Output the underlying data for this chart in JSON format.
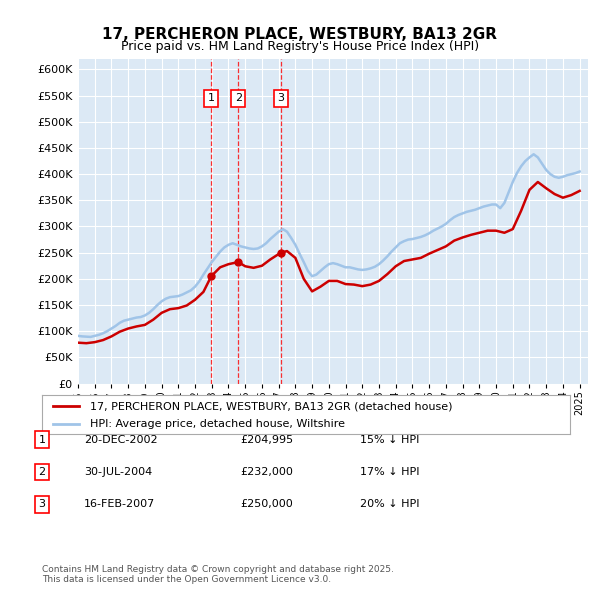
{
  "title": "17, PERCHERON PLACE, WESTBURY, BA13 2GR",
  "subtitle": "Price paid vs. HM Land Registry's House Price Index (HPI)",
  "ylim": [
    0,
    620000
  ],
  "yticks": [
    0,
    50000,
    100000,
    150000,
    200000,
    250000,
    300000,
    350000,
    400000,
    450000,
    500000,
    550000,
    600000
  ],
  "bg_color": "#dce9f5",
  "plot_bg": "#dce9f5",
  "hpi_color": "#a0c4e8",
  "price_color": "#cc0000",
  "legend_label_price": "17, PERCHERON PLACE, WESTBURY, BA13 2GR (detached house)",
  "legend_label_hpi": "HPI: Average price, detached house, Wiltshire",
  "transactions": [
    {
      "num": 1,
      "date": "20-DEC-2002",
      "price": 204995,
      "pct": "15%",
      "year": 2002.97
    },
    {
      "num": 2,
      "date": "30-JUL-2004",
      "price": 232000,
      "pct": "17%",
      "year": 2004.58
    },
    {
      "num": 3,
      "date": "16-FEB-2007",
      "price": 250000,
      "pct": "20%",
      "year": 2007.13
    }
  ],
  "footer": "Contains HM Land Registry data © Crown copyright and database right 2025.\nThis data is licensed under the Open Government Licence v3.0.",
  "hpi_data": {
    "years": [
      1995.0,
      1995.25,
      1995.5,
      1995.75,
      1996.0,
      1996.25,
      1996.5,
      1996.75,
      1997.0,
      1997.25,
      1997.5,
      1997.75,
      1998.0,
      1998.25,
      1998.5,
      1998.75,
      1999.0,
      1999.25,
      1999.5,
      1999.75,
      2000.0,
      2000.25,
      2000.5,
      2000.75,
      2001.0,
      2001.25,
      2001.5,
      2001.75,
      2002.0,
      2002.25,
      2002.5,
      2002.75,
      2003.0,
      2003.25,
      2003.5,
      2003.75,
      2004.0,
      2004.25,
      2004.5,
      2004.75,
      2005.0,
      2005.25,
      2005.5,
      2005.75,
      2006.0,
      2006.25,
      2006.5,
      2006.75,
      2007.0,
      2007.25,
      2007.5,
      2007.75,
      2008.0,
      2008.25,
      2008.5,
      2008.75,
      2009.0,
      2009.25,
      2009.5,
      2009.75,
      2010.0,
      2010.25,
      2010.5,
      2010.75,
      2011.0,
      2011.25,
      2011.5,
      2011.75,
      2012.0,
      2012.25,
      2012.5,
      2012.75,
      2013.0,
      2013.25,
      2013.5,
      2013.75,
      2014.0,
      2014.25,
      2014.5,
      2014.75,
      2015.0,
      2015.25,
      2015.5,
      2015.75,
      2016.0,
      2016.25,
      2016.5,
      2016.75,
      2017.0,
      2017.25,
      2017.5,
      2017.75,
      2018.0,
      2018.25,
      2018.5,
      2018.75,
      2019.0,
      2019.25,
      2019.5,
      2019.75,
      2020.0,
      2020.25,
      2020.5,
      2020.75,
      2021.0,
      2021.25,
      2021.5,
      2021.75,
      2022.0,
      2022.25,
      2022.5,
      2022.75,
      2023.0,
      2023.25,
      2023.5,
      2023.75,
      2024.0,
      2024.25,
      2024.5,
      2024.75,
      2025.0
    ],
    "values": [
      91000,
      90000,
      89500,
      89000,
      91000,
      93000,
      96000,
      100000,
      105000,
      110000,
      116000,
      120000,
      122000,
      124000,
      126000,
      127000,
      130000,
      135000,
      142000,
      150000,
      157000,
      162000,
      165000,
      166000,
      167000,
      170000,
      174000,
      178000,
      185000,
      195000,
      208000,
      220000,
      232000,
      242000,
      252000,
      260000,
      265000,
      268000,
      265000,
      262000,
      260000,
      258000,
      257000,
      258000,
      262000,
      268000,
      276000,
      283000,
      290000,
      295000,
      290000,
      278000,
      265000,
      248000,
      232000,
      215000,
      205000,
      208000,
      215000,
      222000,
      228000,
      230000,
      228000,
      225000,
      222000,
      222000,
      220000,
      218000,
      217000,
      218000,
      220000,
      223000,
      228000,
      235000,
      243000,
      252000,
      260000,
      268000,
      272000,
      275000,
      276000,
      278000,
      280000,
      283000,
      287000,
      292000,
      296000,
      300000,
      305000,
      312000,
      318000,
      322000,
      325000,
      328000,
      330000,
      332000,
      335000,
      338000,
      340000,
      342000,
      342000,
      335000,
      345000,
      365000,
      385000,
      402000,
      415000,
      425000,
      432000,
      438000,
      432000,
      420000,
      408000,
      400000,
      395000,
      393000,
      395000,
      398000,
      400000,
      402000,
      405000
    ]
  },
  "price_data": {
    "years": [
      1995.0,
      1995.5,
      1996.0,
      1996.5,
      1997.0,
      1997.5,
      1998.0,
      1998.5,
      1999.0,
      1999.5,
      2000.0,
      2000.5,
      2001.0,
      2001.5,
      2002.0,
      2002.5,
      2002.97,
      2003.5,
      2004.0,
      2004.58,
      2005.0,
      2005.5,
      2006.0,
      2006.5,
      2007.13,
      2007.5,
      2008.0,
      2008.5,
      2009.0,
      2009.5,
      2010.0,
      2010.5,
      2011.0,
      2011.5,
      2012.0,
      2012.5,
      2013.0,
      2013.5,
      2014.0,
      2014.5,
      2015.0,
      2015.5,
      2016.0,
      2016.5,
      2017.0,
      2017.5,
      2018.0,
      2018.5,
      2019.0,
      2019.5,
      2020.0,
      2020.5,
      2021.0,
      2021.5,
      2022.0,
      2022.5,
      2023.0,
      2023.5,
      2024.0,
      2024.5,
      2025.0
    ],
    "values": [
      78000,
      77000,
      79000,
      83000,
      90000,
      99000,
      105000,
      109000,
      112000,
      122000,
      135000,
      142000,
      144000,
      149000,
      160000,
      175000,
      204995,
      222000,
      228000,
      232000,
      224000,
      221000,
      225000,
      237000,
      250000,
      253000,
      240000,
      200000,
      176000,
      185000,
      196000,
      196000,
      190000,
      189000,
      186000,
      189000,
      196000,
      209000,
      224000,
      234000,
      237000,
      240000,
      248000,
      255000,
      262000,
      273000,
      279000,
      284000,
      288000,
      292000,
      292000,
      288000,
      295000,
      330000,
      370000,
      385000,
      373000,
      362000,
      355000,
      360000,
      368000
    ]
  }
}
